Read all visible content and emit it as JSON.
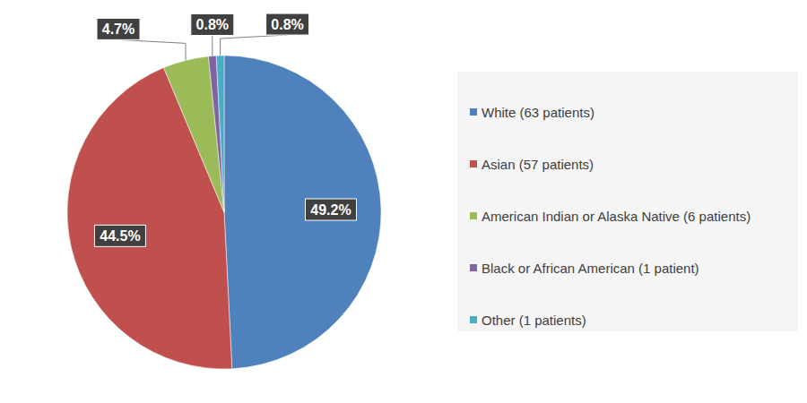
{
  "chart_data": {
    "type": "pie",
    "categories": [
      "White (63 patients)",
      "Asian (57 patients)",
      "American Indian or Alaska Native (6 patients)",
      "Black or African American (1 patient)",
      "Other (1 patients)"
    ],
    "values": [
      49.2,
      44.5,
      4.7,
      0.8,
      0.8
    ],
    "value_labels": [
      "49.2%",
      "44.5%",
      "4.7%",
      "0.8%",
      "0.8%"
    ],
    "colors": [
      "#4f81bd",
      "#c0504d",
      "#9bbb59",
      "#8064a2",
      "#4bacc6"
    ],
    "data_labels": true,
    "legend": "right"
  }
}
